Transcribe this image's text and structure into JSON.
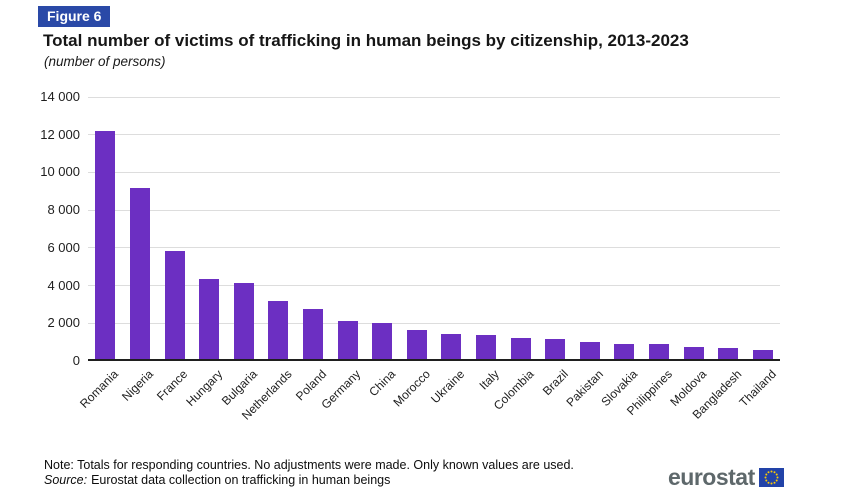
{
  "figure_label": "Figure 6",
  "title": "Total number of victims of trafficking in human beings by citizenship, 2013-2023",
  "subtitle": "(number of persons)",
  "note": "Note: Totals for responding countries. No adjustments were made. Only known values are used.",
  "source_label": "Source:",
  "source_text": "Eurostat data collection on trafficking in human beings",
  "logo": {
    "text": "eurostat"
  },
  "colors": {
    "bar": "#6C2FC2",
    "badge_bg": "#2A49A7",
    "gridline": "#DDDDDD",
    "axis_line": "#1F1F1F",
    "logo_text": "#5E686B",
    "flag_blue": "#2243A8",
    "flag_star": "#FFCC00"
  },
  "chart_data": {
    "type": "bar",
    "title": "Total number of victims of trafficking in human beings by citizenship, 2013-2023",
    "subtitle": "(number of persons)",
    "xlabel": "",
    "ylabel": "",
    "ylim": [
      0,
      14000
    ],
    "yticks": [
      0,
      2000,
      4000,
      6000,
      8000,
      10000,
      12000,
      14000
    ],
    "ytick_labels": [
      "0",
      "2 000",
      "4 000",
      "6 000",
      "8 000",
      "10 000",
      "12 000",
      "14 000"
    ],
    "grid": true,
    "legend": false,
    "categories": [
      "Romania",
      "Nigeria",
      "France",
      "Hungary",
      "Bulgaria",
      "Netherlands",
      "Poland",
      "Germany",
      "China",
      "Morocco",
      "Ukraine",
      "Italy",
      "Colombia",
      "Brazil",
      "Pakistan",
      "Slovakia",
      "Philippines",
      "Moldova",
      "Bangladesh",
      "Thailand"
    ],
    "values": [
      12150,
      9100,
      5800,
      4300,
      4100,
      3150,
      2700,
      2050,
      1950,
      1600,
      1400,
      1330,
      1150,
      1130,
      950,
      860,
      850,
      700,
      650,
      550
    ]
  }
}
